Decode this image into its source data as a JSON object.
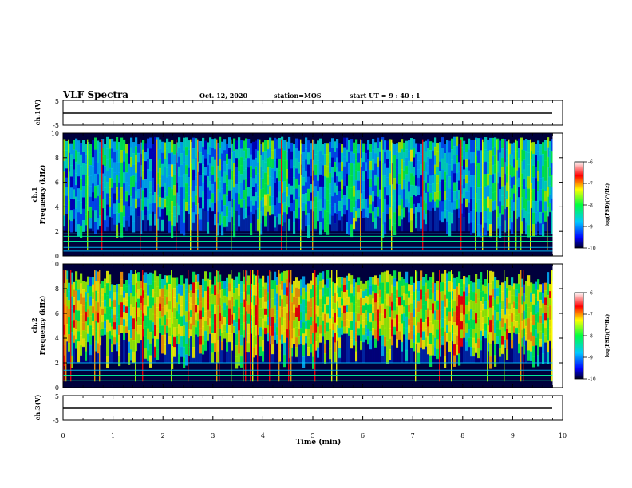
{
  "header": {
    "title": "VLF Spectra",
    "date": "Oct. 12, 2020",
    "station": "station=MOS",
    "start": "start  UT  =   9 : 40 : 1"
  },
  "chart_data": [
    {
      "type": "line",
      "ylabel": "ch.1(V)",
      "ylim": [
        -5,
        5
      ],
      "yticks": [
        "5",
        "-5"
      ],
      "series": [
        {
          "x": [
            0,
            9.8
          ],
          "values": [
            0,
            0
          ]
        }
      ]
    },
    {
      "type": "heatmap",
      "ylabel": "ch.1\nFrequency (kHz)",
      "ylim": [
        0,
        10
      ],
      "yticks": [
        "0",
        "2",
        "4",
        "6",
        "8",
        "10"
      ],
      "colorbar": {
        "label": "log(PSD)(V²/Hz)",
        "range": [
          -10,
          -6
        ],
        "ticks": [
          "-6",
          "-7",
          "-8",
          "-9",
          "-10"
        ]
      }
    },
    {
      "type": "heatmap",
      "ylabel": "ch.2\nFrequency (kHz)",
      "ylim": [
        0,
        10
      ],
      "yticks": [
        "0",
        "2",
        "4",
        "6",
        "8",
        "10"
      ],
      "colorbar": {
        "label": "log(PSD)(V²/Hz)",
        "range": [
          -10,
          -6
        ],
        "ticks": [
          "-6",
          "-7",
          "-8",
          "-9",
          "-10"
        ]
      }
    },
    {
      "type": "line",
      "ylabel": "ch.3(V)",
      "ylim": [
        -5,
        5
      ],
      "yticks": [
        "5",
        "-5"
      ],
      "series": [
        {
          "x": [
            0,
            9.8
          ],
          "values": [
            0,
            0
          ]
        }
      ]
    }
  ],
  "xaxis": {
    "label": "Time (min)",
    "xlim": [
      0,
      10
    ],
    "ticks": [
      "0",
      "1",
      "2",
      "3",
      "4",
      "5",
      "6",
      "7",
      "8",
      "9",
      "10"
    ]
  },
  "colors": {
    "axis": "#000000",
    "background": "#ffffff",
    "spectrogram_base": "#00003c"
  }
}
